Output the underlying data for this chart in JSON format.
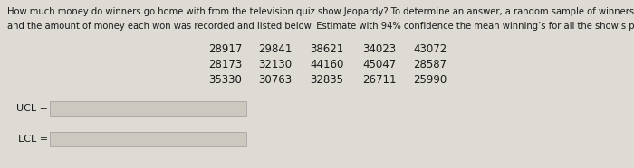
{
  "background_color": "#dedad4",
  "text_color": "#1a1a1a",
  "paragraph_line1": "How much money do winners go home with from the television quiz show Jeopardy? To determine an answer, a random sample of winners was drawn",
  "paragraph_line2": "and the amount of money each won was recorded and listed below. Estimate with 94% confidence the mean winning’s for all the show’s players.",
  "data_rows": [
    [
      28917,
      29841,
      38621,
      34023,
      43072
    ],
    [
      28173,
      32130,
      44160,
      45047,
      28587
    ],
    [
      35330,
      30763,
      32835,
      26711,
      25990
    ]
  ],
  "ucl_label": "UCL =",
  "lcl_label": "LCL =",
  "box_fill": "#ccc8c0",
  "box_edge": "#aaaaaa",
  "font_size_paragraph": 7.2,
  "font_size_data": 8.5,
  "font_size_labels": 8.0
}
